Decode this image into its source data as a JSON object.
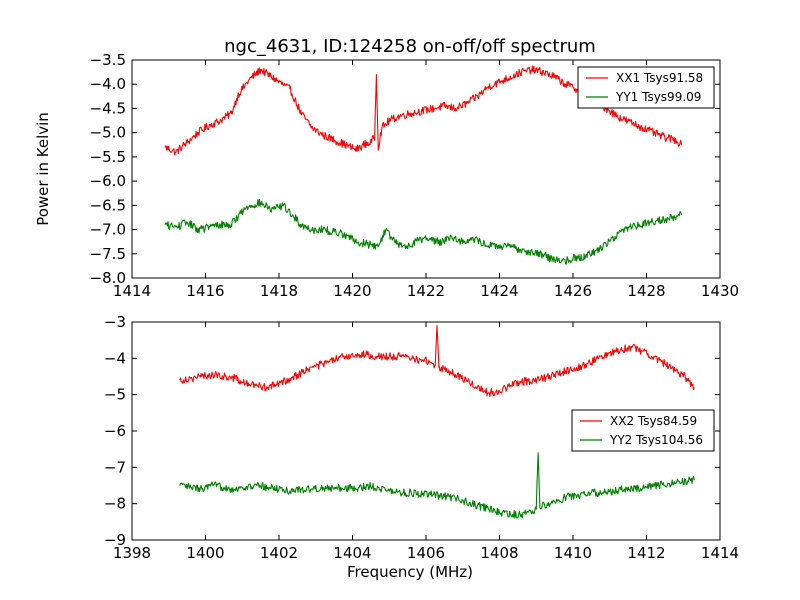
{
  "chart_data": [
    {
      "type": "line",
      "title": "ngc_4631, ID:124258 on-off/off spectrum",
      "xlabel": "",
      "ylabel": "Power in Kelvin",
      "xlim": [
        1414,
        1430
      ],
      "ylim": [
        -8.0,
        -3.5
      ],
      "xticks": [
        1414,
        1416,
        1418,
        1420,
        1422,
        1424,
        1426,
        1428,
        1430
      ],
      "yticks": [
        -3.5,
        -4.0,
        -4.5,
        -5.0,
        -5.5,
        -6.0,
        -6.5,
        -7.0,
        -7.5,
        -8.0
      ],
      "xtick_labels": [
        "1414",
        "1416",
        "1418",
        "1420",
        "1422",
        "1424",
        "1426",
        "1428",
        "1430"
      ],
      "ytick_labels": [
        "−3.5",
        "−4.0",
        "−4.5",
        "−5.0",
        "−5.5",
        "−6.0",
        "−6.5",
        "−7.0",
        "−7.5",
        "−8.0"
      ],
      "legend_position": "top-right",
      "series": [
        {
          "name": "XX1 Tsys91.58",
          "color": "#ff0000",
          "x": [
            1414.9,
            1415.2,
            1415.5,
            1415.8,
            1416.1,
            1416.4,
            1416.7,
            1416.9,
            1417.2,
            1417.5,
            1417.8,
            1418.1,
            1418.3,
            1418.6,
            1418.9,
            1419.2,
            1419.5,
            1419.8,
            1420.1,
            1420.3,
            1420.5,
            1420.6,
            1420.65,
            1420.7,
            1420.8,
            1421.0,
            1421.3,
            1421.6,
            1421.9,
            1422.2,
            1422.5,
            1422.8,
            1423.1,
            1423.4,
            1423.7,
            1424.0,
            1424.3,
            1424.6,
            1424.9,
            1425.2,
            1425.5,
            1425.8,
            1426.1,
            1426.4,
            1426.7,
            1427.0,
            1427.3,
            1427.6,
            1427.9,
            1428.2,
            1428.5,
            1428.8,
            1428.95
          ],
          "y": [
            -5.3,
            -5.4,
            -5.2,
            -5.0,
            -4.85,
            -4.75,
            -4.6,
            -4.2,
            -3.9,
            -3.7,
            -3.85,
            -4.0,
            -4.1,
            -4.6,
            -4.9,
            -5.05,
            -5.15,
            -5.25,
            -5.35,
            -5.25,
            -5.2,
            -5.1,
            -3.8,
            -5.3,
            -4.9,
            -4.75,
            -4.65,
            -4.6,
            -4.55,
            -4.5,
            -4.45,
            -4.5,
            -4.4,
            -4.25,
            -4.05,
            -3.95,
            -3.85,
            -3.75,
            -3.7,
            -3.75,
            -3.85,
            -4.0,
            -4.1,
            -4.3,
            -4.4,
            -4.55,
            -4.7,
            -4.8,
            -4.9,
            -5.0,
            -5.1,
            -5.15,
            -5.25
          ]
        },
        {
          "name": "YY1 Tsys99.09",
          "color": "#008000",
          "x": [
            1414.9,
            1415.2,
            1415.5,
            1415.8,
            1416.1,
            1416.4,
            1416.7,
            1416.9,
            1417.2,
            1417.5,
            1417.8,
            1418.1,
            1418.3,
            1418.6,
            1418.9,
            1419.2,
            1419.5,
            1419.8,
            1420.1,
            1420.4,
            1420.7,
            1420.9,
            1421.2,
            1421.5,
            1421.8,
            1422.1,
            1422.4,
            1422.7,
            1423.0,
            1423.3,
            1423.6,
            1423.9,
            1424.2,
            1424.5,
            1424.8,
            1425.1,
            1425.4,
            1425.7,
            1426.0,
            1426.3,
            1426.6,
            1426.9,
            1427.2,
            1427.5,
            1427.8,
            1428.1,
            1428.4,
            1428.7,
            1428.95
          ],
          "y": [
            -6.9,
            -6.95,
            -6.85,
            -7.0,
            -6.95,
            -6.9,
            -6.9,
            -6.7,
            -6.5,
            -6.45,
            -6.6,
            -6.5,
            -6.65,
            -6.9,
            -7.0,
            -7.0,
            -7.05,
            -7.1,
            -7.25,
            -7.3,
            -7.35,
            -7.0,
            -7.3,
            -7.35,
            -7.2,
            -7.2,
            -7.25,
            -7.15,
            -7.25,
            -7.2,
            -7.3,
            -7.35,
            -7.35,
            -7.4,
            -7.45,
            -7.5,
            -7.6,
            -7.65,
            -7.6,
            -7.55,
            -7.45,
            -7.3,
            -7.1,
            -6.95,
            -6.9,
            -6.85,
            -6.8,
            -6.75,
            -6.7
          ]
        }
      ]
    },
    {
      "type": "line",
      "title": "",
      "xlabel": "Frequency (MHz)",
      "ylabel": "",
      "xlim": [
        1398,
        1414
      ],
      "ylim": [
        -9,
        -3
      ],
      "xticks": [
        1398,
        1400,
        1402,
        1404,
        1406,
        1408,
        1410,
        1412,
        1414
      ],
      "yticks": [
        -3,
        -4,
        -5,
        -6,
        -7,
        -8,
        -9
      ],
      "xtick_labels": [
        "1398",
        "1400",
        "1402",
        "1404",
        "1406",
        "1408",
        "1410",
        "1412",
        "1414"
      ],
      "ytick_labels": [
        "−3",
        "−4",
        "−5",
        "−6",
        "−7",
        "−8",
        "−9"
      ],
      "legend_position": "center-right",
      "series": [
        {
          "name": "XX2 Tsys84.59",
          "color": "#ff0000",
          "x": [
            1399.3,
            1399.6,
            1399.9,
            1400.2,
            1400.5,
            1400.8,
            1401.1,
            1401.4,
            1401.7,
            1402.0,
            1402.3,
            1402.6,
            1402.9,
            1403.2,
            1403.5,
            1403.8,
            1404.1,
            1404.4,
            1404.7,
            1405.0,
            1405.3,
            1405.6,
            1405.9,
            1406.1,
            1406.25,
            1406.3,
            1406.35,
            1406.5,
            1406.8,
            1407.1,
            1407.4,
            1407.7,
            1408.0,
            1408.3,
            1408.6,
            1408.9,
            1409.2,
            1409.5,
            1409.8,
            1410.1,
            1410.4,
            1410.7,
            1411.0,
            1411.3,
            1411.6,
            1411.9,
            1412.2,
            1412.5,
            1412.8,
            1413.1,
            1413.3
          ],
          "y": [
            -4.6,
            -4.55,
            -4.5,
            -4.45,
            -4.5,
            -4.55,
            -4.7,
            -4.75,
            -4.8,
            -4.7,
            -4.55,
            -4.4,
            -4.25,
            -4.15,
            -4.05,
            -3.95,
            -3.9,
            -3.9,
            -3.95,
            -3.95,
            -3.95,
            -4.0,
            -4.05,
            -4.1,
            -4.2,
            -3.1,
            -4.25,
            -4.3,
            -4.45,
            -4.6,
            -4.8,
            -4.95,
            -4.9,
            -4.75,
            -4.65,
            -4.6,
            -4.55,
            -4.45,
            -4.35,
            -4.25,
            -4.15,
            -4.0,
            -3.85,
            -3.75,
            -3.7,
            -3.8,
            -3.95,
            -4.15,
            -4.35,
            -4.55,
            -4.8
          ]
        },
        {
          "name": "YY2 Tsys104.56",
          "color": "#008000",
          "x": [
            1399.3,
            1399.6,
            1399.9,
            1400.2,
            1400.5,
            1400.8,
            1401.1,
            1401.4,
            1401.7,
            1402.0,
            1402.3,
            1402.6,
            1402.9,
            1403.2,
            1403.5,
            1403.8,
            1404.1,
            1404.4,
            1404.7,
            1405.0,
            1405.3,
            1405.6,
            1405.9,
            1406.2,
            1406.5,
            1406.8,
            1407.1,
            1407.4,
            1407.7,
            1408.0,
            1408.3,
            1408.6,
            1408.9,
            1409.0,
            1409.05,
            1409.1,
            1409.3,
            1409.6,
            1409.9,
            1410.2,
            1410.5,
            1410.8,
            1411.1,
            1411.4,
            1411.7,
            1412.0,
            1412.3,
            1412.6,
            1412.9,
            1413.3
          ],
          "y": [
            -7.5,
            -7.55,
            -7.6,
            -7.5,
            -7.55,
            -7.6,
            -7.55,
            -7.5,
            -7.55,
            -7.6,
            -7.65,
            -7.6,
            -7.6,
            -7.55,
            -7.6,
            -7.55,
            -7.6,
            -7.5,
            -7.55,
            -7.65,
            -7.7,
            -7.7,
            -7.75,
            -7.75,
            -7.8,
            -7.85,
            -7.95,
            -8.05,
            -8.15,
            -8.25,
            -8.3,
            -8.3,
            -8.2,
            -8.15,
            -6.6,
            -8.1,
            -8.0,
            -7.9,
            -7.8,
            -7.75,
            -7.7,
            -7.7,
            -7.65,
            -7.6,
            -7.6,
            -7.55,
            -7.5,
            -7.45,
            -7.4,
            -7.35
          ]
        }
      ]
    }
  ]
}
